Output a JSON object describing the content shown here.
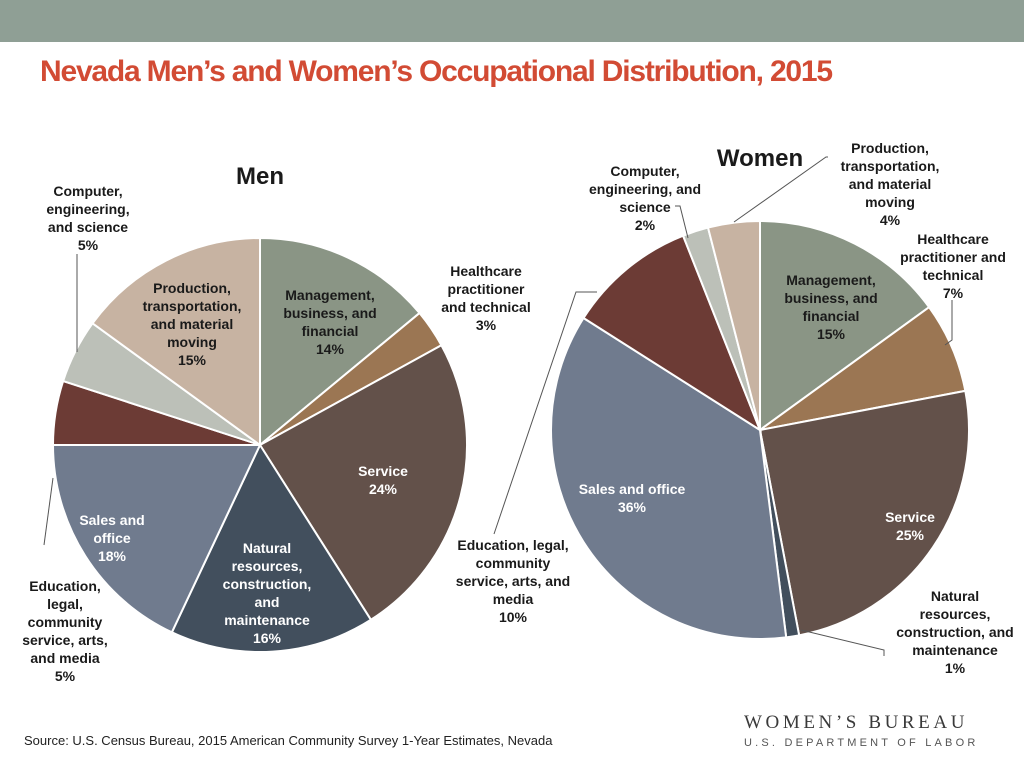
{
  "header": {
    "title": "Nevada Men’s and Women’s Occupational Distribution, 2015",
    "bar_color": "#8f9f95",
    "title_color": "#d24b34"
  },
  "chart_data": [
    {
      "type": "pie",
      "title": "Men",
      "slices": [
        {
          "label": [
            "Management,",
            "business, and",
            "financial",
            "14%"
          ],
          "value": 14,
          "color": "#8a9585"
        },
        {
          "label": [
            "Healthcare",
            "practitioner",
            "and technical",
            "3%"
          ],
          "value": 3,
          "color": "#9b7653"
        },
        {
          "label": [
            "Service",
            "24%"
          ],
          "value": 24,
          "color": "#63514a"
        },
        {
          "label": [
            "Natural",
            "resources,",
            "construction,",
            "and",
            "maintenance",
            "16%"
          ],
          "value": 16,
          "color": "#424f5d"
        },
        {
          "label": [
            "Sales and",
            "office",
            "18%"
          ],
          "value": 18,
          "color": "#707b8e"
        },
        {
          "label": [
            "Education,",
            "legal,",
            "community",
            "service, arts,",
            "and media",
            "5%"
          ],
          "value": 5,
          "color": "#6c3b35"
        },
        {
          "label": [
            "Computer,",
            "engineering,",
            "and science",
            "5%"
          ],
          "value": 5,
          "color": "#bcc0b8"
        },
        {
          "label": [
            "Production,",
            "transportation,",
            "and material",
            "moving",
            "15%"
          ],
          "value": 15,
          "color": "#c7b3a2"
        }
      ]
    },
    {
      "type": "pie",
      "title": "Women",
      "slices": [
        {
          "label": [
            "Management,",
            "business, and",
            "financial",
            "15%"
          ],
          "value": 15,
          "color": "#8a9585"
        },
        {
          "label": [
            "Healthcare",
            "practitioner and",
            "technical",
            "7%"
          ],
          "value": 7,
          "color": "#9b7653"
        },
        {
          "label": [
            "Service",
            "25%"
          ],
          "value": 25,
          "color": "#63514a"
        },
        {
          "label": [
            "Natural",
            "resources,",
            "construction, and",
            "maintenance",
            "1%"
          ],
          "value": 1,
          "color": "#424f5d"
        },
        {
          "label": [
            "Sales and office",
            "36%"
          ],
          "value": 36,
          "color": "#707b8e"
        },
        {
          "label": [
            "Education, legal,",
            "community",
            "service, arts, and",
            "media",
            "10%"
          ],
          "value": 10,
          "color": "#6c3b35"
        },
        {
          "label": [
            "Computer,",
            "engineering, and",
            "science",
            "2%"
          ],
          "value": 2,
          "color": "#bcc0b8"
        },
        {
          "label": [
            "Production,",
            "transportation,",
            "and material",
            "moving",
            "4%"
          ],
          "value": 4,
          "color": "#c7b3a2"
        }
      ]
    }
  ],
  "footer": {
    "source": "Source: U.S. Census Bureau, 2015 American Community Survey 1-Year Estimates, Nevada",
    "logo_main": "WOMEN’S BUREAU",
    "logo_sub": "U.S. DEPARTMENT OF LABOR"
  }
}
